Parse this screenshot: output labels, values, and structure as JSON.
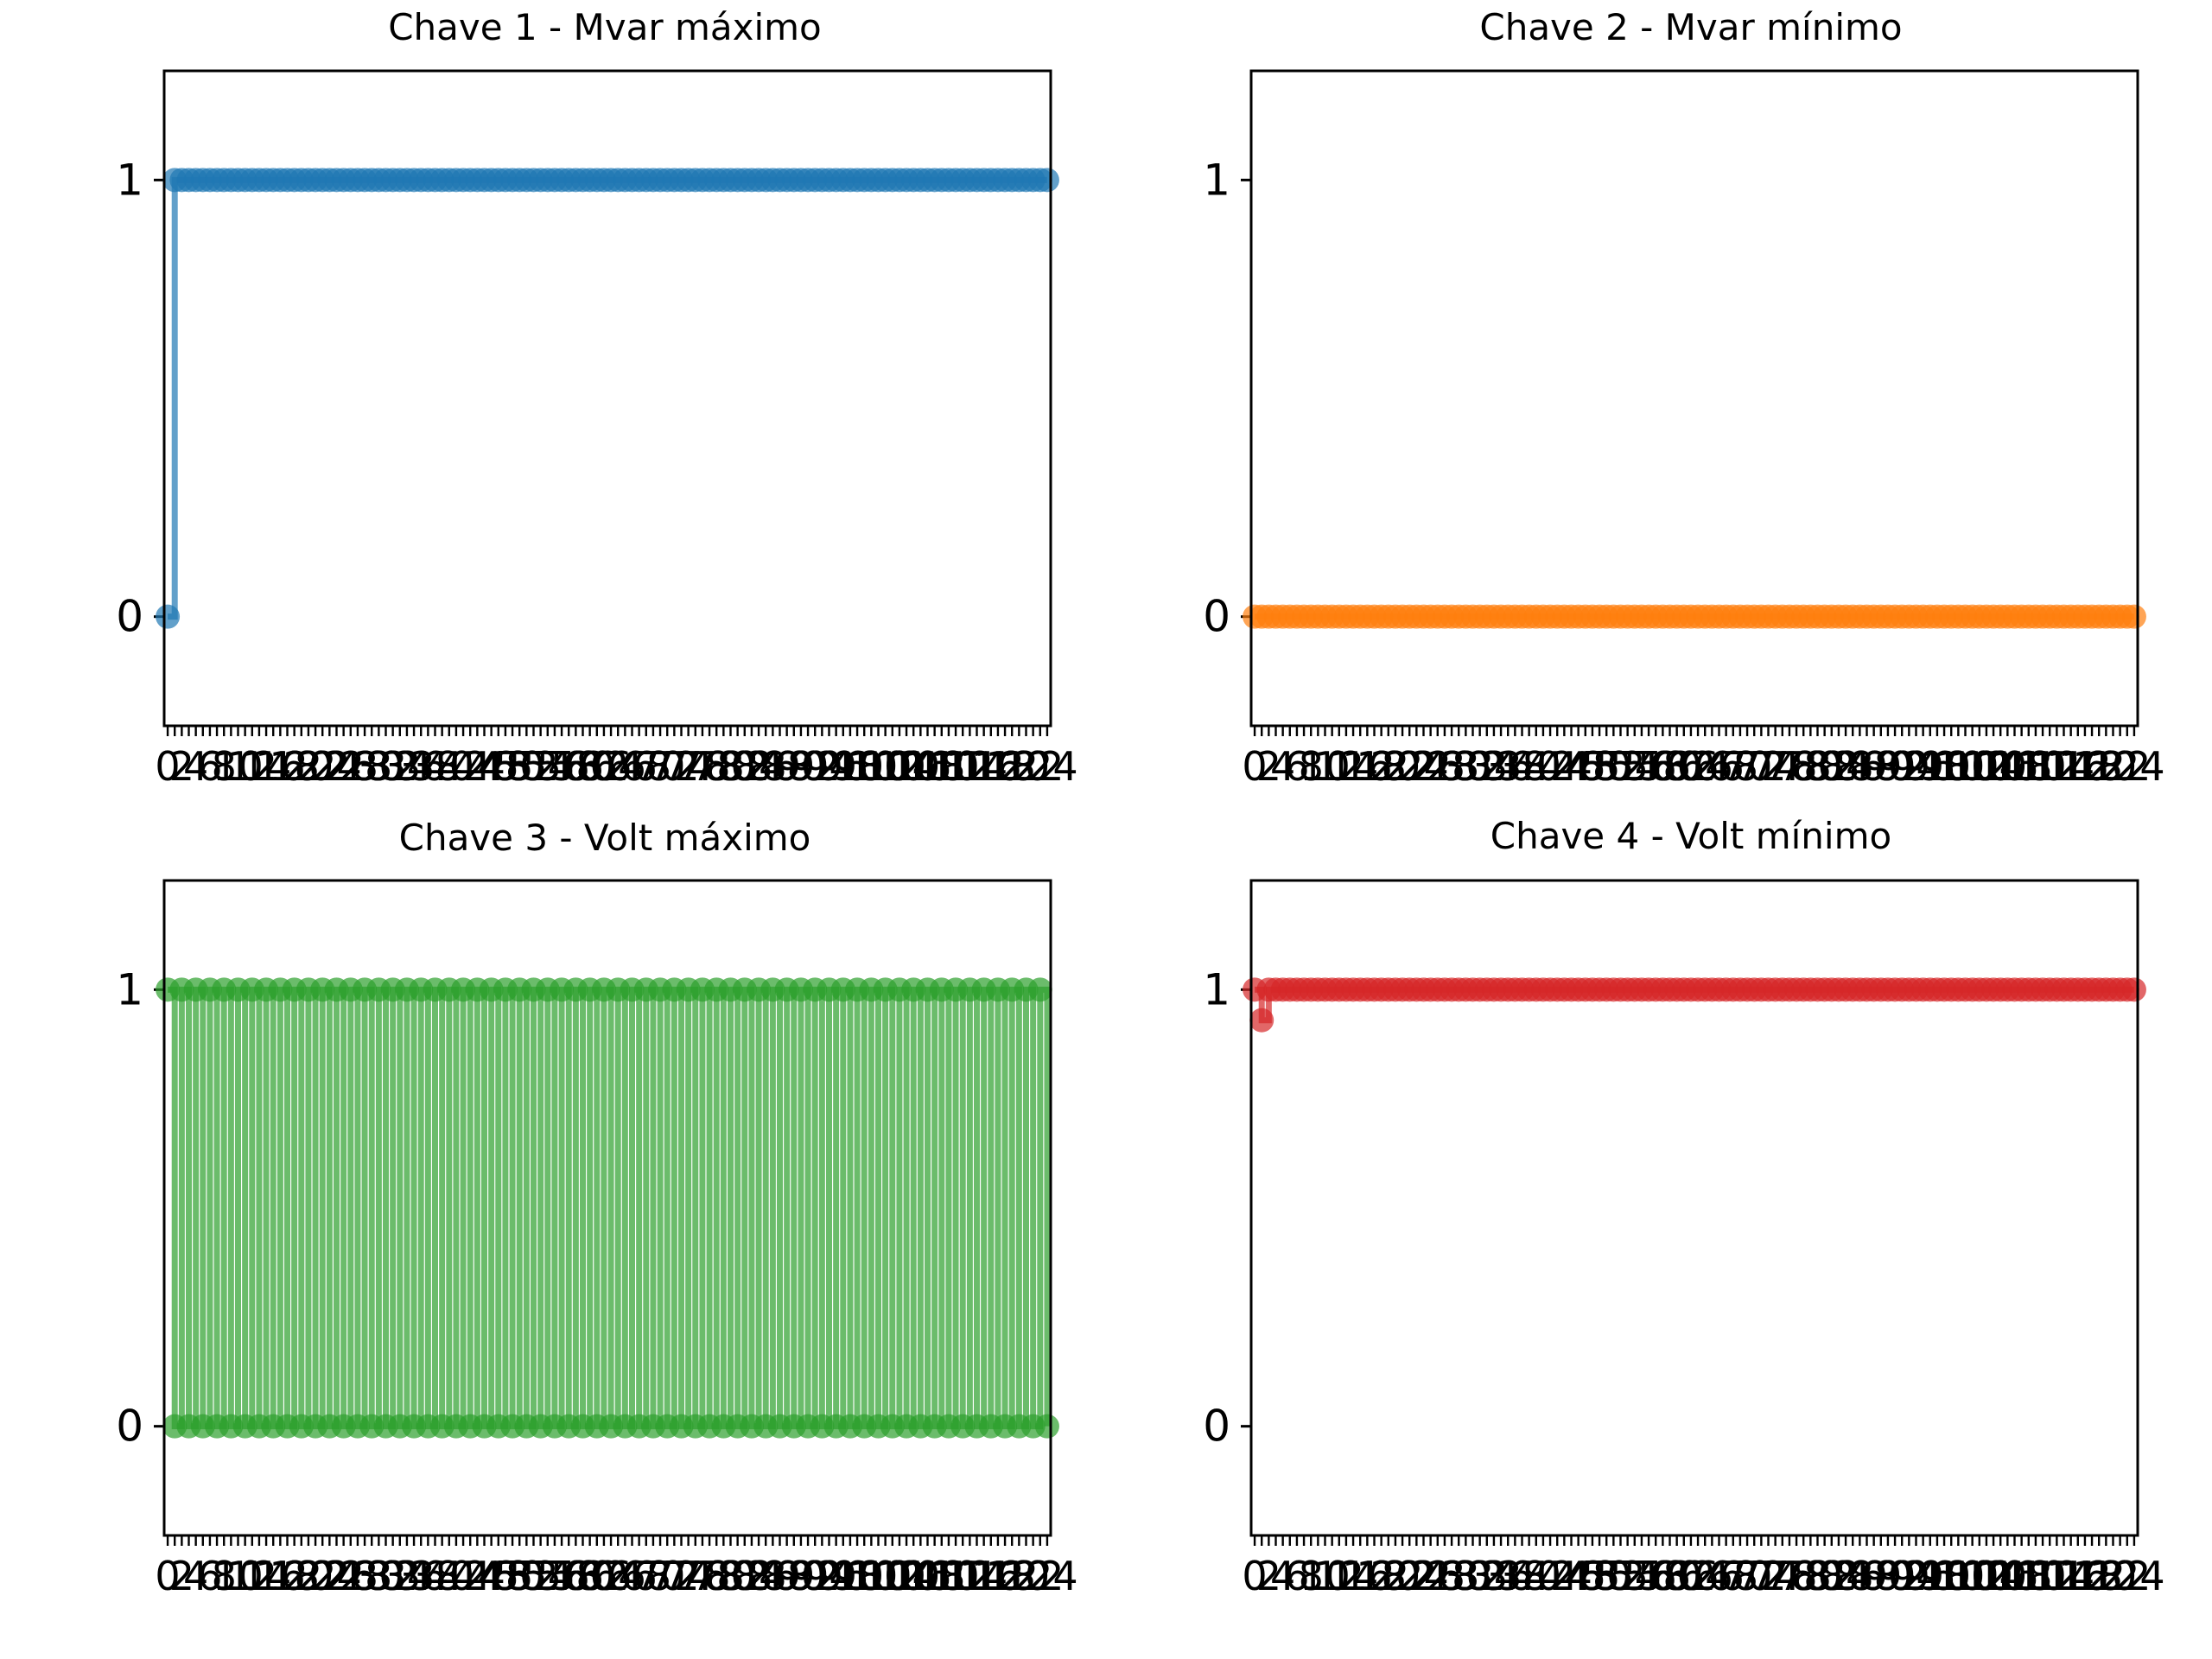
{
  "chart_data": [
    {
      "type": "step-scatter",
      "title": "Chave 1 - Mvar máximo",
      "color": "#1f77b4",
      "x_count": 126,
      "x_ticks_label_step": 2,
      "yticks": [
        0,
        1
      ],
      "ylim": [
        -0.25,
        1.25
      ],
      "pattern": "first-zero-then-ones",
      "values_desc": "x=0 → 0; x=1..125 → 1"
    },
    {
      "type": "step-scatter",
      "title": "Chave 2 - Mvar mínimo",
      "color": "#ff7f0e",
      "x_count": 126,
      "x_ticks_label_step": 2,
      "yticks": [
        0,
        1
      ],
      "ylim": [
        -0.25,
        1.25
      ],
      "pattern": "all-zero",
      "values_desc": "x=0..125 → 0"
    },
    {
      "type": "step-scatter",
      "title": "Chave 3 - Volt máximo",
      "color": "#2ca02c",
      "x_count": 126,
      "x_ticks_label_step": 2,
      "yticks": [
        0,
        1
      ],
      "ylim": [
        -0.25,
        1.25
      ],
      "pattern": "alternating",
      "values_desc": "x=0 → 1; x=1 → 0; then alternates 1,0,..."
    },
    {
      "type": "step-scatter",
      "title": "Chave 4 - Volt mínimo",
      "color": "#d62728",
      "x_count": 126,
      "x_ticks_label_step": 2,
      "yticks": [
        0,
        1
      ],
      "ylim": [
        -0.25,
        1.25
      ],
      "pattern": "first-then-ones",
      "first_value": 0.93,
      "values_desc": "x=0 → 1; x=1 → 0.93; x=2..125 → 1"
    }
  ]
}
